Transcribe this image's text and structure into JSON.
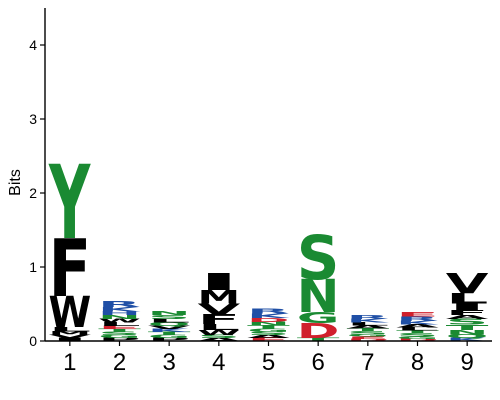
{
  "chart_data": {
    "type": "sequence-logo",
    "title": "",
    "xlabel": "",
    "ylabel": "Bits",
    "ylim": [
      0,
      4.5
    ],
    "yticks": [
      "0",
      "1",
      "2",
      "3",
      "4"
    ],
    "positions": [
      "1",
      "2",
      "3",
      "4",
      "5",
      "6",
      "7",
      "8",
      "9"
    ],
    "colors": {
      "hydrophobic": "#000000",
      "polar": "#1a8a32",
      "basic": "#1f4fa6",
      "acidic": "#d0202c",
      "neutral": "#555555"
    },
    "stacks": [
      [
        {
          "letter": "I",
          "bits": 0.04,
          "color": "#000000"
        },
        {
          "letter": "V",
          "bits": 0.04,
          "color": "#000000"
        },
        {
          "letter": "M",
          "bits": 0.05,
          "color": "#000000"
        },
        {
          "letter": "L",
          "bits": 0.06,
          "color": "#000000"
        },
        {
          "letter": "W",
          "bits": 0.42,
          "color": "#000000"
        },
        {
          "letter": "F",
          "bits": 0.78,
          "color": "#000000"
        },
        {
          "letter": "Y",
          "bits": 1.0,
          "color": "#1a8a32"
        }
      ],
      [
        {
          "letter": "P",
          "bits": 0.04,
          "color": "#000000"
        },
        {
          "letter": "G",
          "bits": 0.04,
          "color": "#1a8a32"
        },
        {
          "letter": "S",
          "bits": 0.04,
          "color": "#1a8a32"
        },
        {
          "letter": "T",
          "bits": 0.04,
          "color": "#1a8a32"
        },
        {
          "letter": "E",
          "bits": 0.04,
          "color": "#d0202c"
        },
        {
          "letter": "L",
          "bits": 0.05,
          "color": "#000000"
        },
        {
          "letter": "W",
          "bits": 0.05,
          "color": "#000000"
        },
        {
          "letter": "N",
          "bits": 0.05,
          "color": "#1a8a32"
        },
        {
          "letter": "H",
          "bits": 0.05,
          "color": "#1f4fa6"
        },
        {
          "letter": "K",
          "bits": 0.06,
          "color": "#1f4fa6"
        },
        {
          "letter": "R",
          "bits": 0.08,
          "color": "#1f4fa6"
        }
      ],
      [
        {
          "letter": "P",
          "bits": 0.04,
          "color": "#000000"
        },
        {
          "letter": "G",
          "bits": 0.04,
          "color": "#1a8a32"
        },
        {
          "letter": "T",
          "bits": 0.04,
          "color": "#1a8a32"
        },
        {
          "letter": "K",
          "bits": 0.04,
          "color": "#1f4fa6"
        },
        {
          "letter": "V",
          "bits": 0.04,
          "color": "#000000"
        },
        {
          "letter": "Q",
          "bits": 0.05,
          "color": "#1a8a32"
        },
        {
          "letter": "L",
          "bits": 0.05,
          "color": "#000000"
        },
        {
          "letter": "S",
          "bits": 0.05,
          "color": "#1a8a32"
        },
        {
          "letter": "N",
          "bits": 0.05,
          "color": "#1a8a32"
        }
      ],
      [
        {
          "letter": "A",
          "bits": 0.04,
          "color": "#000000"
        },
        {
          "letter": "S",
          "bits": 0.04,
          "color": "#1a8a32"
        },
        {
          "letter": "W",
          "bits": 0.07,
          "color": "#000000"
        },
        {
          "letter": "L",
          "bits": 0.08,
          "color": "#000000"
        },
        {
          "letter": "F",
          "bits": 0.13,
          "color": "#000000"
        },
        {
          "letter": "V",
          "bits": 0.15,
          "color": "#000000"
        },
        {
          "letter": "M",
          "bits": 0.18,
          "color": "#000000"
        },
        {
          "letter": "I",
          "bits": 0.23,
          "color": "#000000"
        }
      ],
      [
        {
          "letter": "E",
          "bits": 0.04,
          "color": "#d0202c"
        },
        {
          "letter": "A",
          "bits": 0.04,
          "color": "#000000"
        },
        {
          "letter": "S",
          "bits": 0.04,
          "color": "#1a8a32"
        },
        {
          "letter": "G",
          "bits": 0.04,
          "color": "#1a8a32"
        },
        {
          "letter": "T",
          "bits": 0.05,
          "color": "#1a8a32"
        },
        {
          "letter": "N",
          "bits": 0.05,
          "color": "#1a8a32"
        },
        {
          "letter": "D",
          "bits": 0.05,
          "color": "#d0202c"
        },
        {
          "letter": "K",
          "bits": 0.06,
          "color": "#1f4fa6"
        },
        {
          "letter": "R",
          "bits": 0.07,
          "color": "#1f4fa6"
        }
      ],
      [
        {
          "letter": "T",
          "bits": 0.04,
          "color": "#1a8a32"
        },
        {
          "letter": "D",
          "bits": 0.2,
          "color": "#d0202c"
        },
        {
          "letter": "G",
          "bits": 0.15,
          "color": "#1a8a32"
        },
        {
          "letter": "N",
          "bits": 0.45,
          "color": "#1a8a32"
        },
        {
          "letter": "S",
          "bits": 0.6,
          "color": "#1a8a32"
        }
      ],
      [
        {
          "letter": "D",
          "bits": 0.03,
          "color": "#d0202c"
        },
        {
          "letter": "E",
          "bits": 0.03,
          "color": "#d0202c"
        },
        {
          "letter": "G",
          "bits": 0.03,
          "color": "#1a8a32"
        },
        {
          "letter": "S",
          "bits": 0.04,
          "color": "#1a8a32"
        },
        {
          "letter": "T",
          "bits": 0.04,
          "color": "#1a8a32"
        },
        {
          "letter": "A",
          "bits": 0.04,
          "color": "#000000"
        },
        {
          "letter": "L",
          "bits": 0.04,
          "color": "#000000"
        },
        {
          "letter": "K",
          "bits": 0.05,
          "color": "#1f4fa6"
        },
        {
          "letter": "R",
          "bits": 0.05,
          "color": "#1f4fa6"
        }
      ],
      [
        {
          "letter": "D",
          "bits": 0.03,
          "color": "#d0202c"
        },
        {
          "letter": "G",
          "bits": 0.03,
          "color": "#1a8a32"
        },
        {
          "letter": "S",
          "bits": 0.04,
          "color": "#1a8a32"
        },
        {
          "letter": "T",
          "bits": 0.04,
          "color": "#1a8a32"
        },
        {
          "letter": "L",
          "bits": 0.04,
          "color": "#000000"
        },
        {
          "letter": "A",
          "bits": 0.04,
          "color": "#000000"
        },
        {
          "letter": "K",
          "bits": 0.05,
          "color": "#1f4fa6"
        },
        {
          "letter": "R",
          "bits": 0.06,
          "color": "#1f4fa6"
        },
        {
          "letter": "E",
          "bits": 0.06,
          "color": "#d0202c"
        }
      ],
      [
        {
          "letter": "K",
          "bits": 0.04,
          "color": "#1f4fa6"
        },
        {
          "letter": "Q",
          "bits": 0.05,
          "color": "#1a8a32"
        },
        {
          "letter": "N",
          "bits": 0.06,
          "color": "#1a8a32"
        },
        {
          "letter": "T",
          "bits": 0.07,
          "color": "#1a8a32"
        },
        {
          "letter": "S",
          "bits": 0.08,
          "color": "#1a8a32"
        },
        {
          "letter": "A",
          "bits": 0.05,
          "color": "#000000"
        },
        {
          "letter": "F",
          "bits": 0.07,
          "color": "#000000"
        },
        {
          "letter": "I",
          "bits": 0.09,
          "color": "#000000"
        },
        {
          "letter": "L",
          "bits": 0.14,
          "color": "#000000"
        },
        {
          "letter": "V",
          "bits": 0.27,
          "color": "#000000"
        }
      ]
    ]
  }
}
